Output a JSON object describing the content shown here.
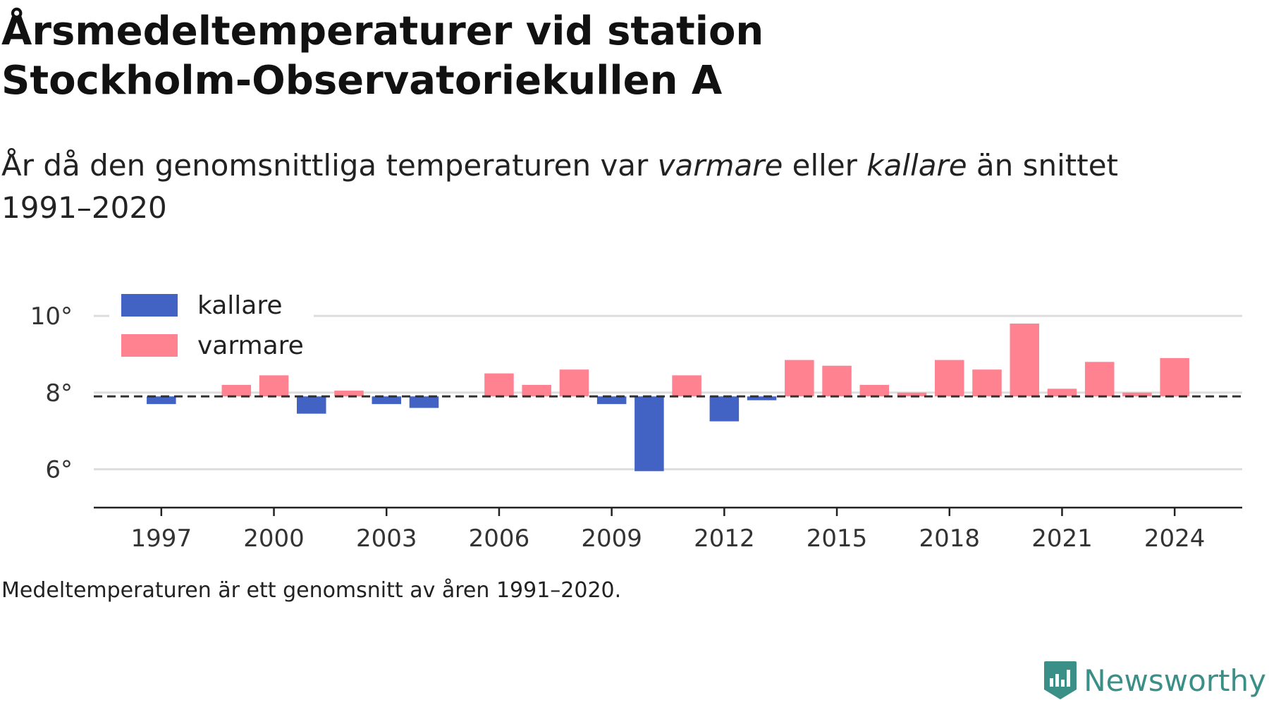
{
  "title_line1": "Årsmedeltemperaturer vid station",
  "title_line2": "Stockholm-Observatoriekullen A",
  "subtitle": {
    "part1": "År då den genomsnittliga temperaturen var ",
    "warmer_word": "varmare",
    "part2": " eller ",
    "colder_word": "kallare",
    "part3": " än snittet",
    "line2": "1991–2020"
  },
  "footnote": "Medeltemperaturen är ett genomsnitt av åren 1991–2020.",
  "brand": {
    "name": "Newsworthy",
    "icon": "newsworthy-logo-icon",
    "color": "#3a8f87"
  },
  "colors": {
    "colder": "#4263c4",
    "warmer": "#ff8291",
    "reference_line": "#333333",
    "grid": "#dddddd"
  },
  "chart_data": {
    "type": "bar",
    "baseline": 7.9,
    "ylim": [
      5.0,
      10.7
    ],
    "yticks": [
      6,
      8,
      10
    ],
    "ytick_labels": [
      "6°",
      "8°",
      "10°"
    ],
    "xticks": [
      1997,
      2000,
      2003,
      2006,
      2009,
      2012,
      2015,
      2018,
      2021,
      2024
    ],
    "xlim": [
      1995.2,
      2025.8
    ],
    "legend": {
      "placement": "top-left",
      "items": [
        "kallare",
        "varmare"
      ]
    },
    "grid": true,
    "years": [
      1997,
      1998,
      1999,
      2000,
      2001,
      2002,
      2003,
      2004,
      2005,
      2006,
      2007,
      2008,
      2009,
      2010,
      2011,
      2012,
      2013,
      2014,
      2015,
      2016,
      2017,
      2018,
      2019,
      2020,
      2021,
      2022,
      2023,
      2024
    ],
    "values": [
      7.7,
      7.9,
      8.2,
      8.45,
      7.45,
      8.05,
      7.7,
      7.6,
      7.9,
      8.5,
      8.2,
      8.6,
      7.7,
      5.95,
      8.45,
      7.25,
      7.8,
      8.85,
      8.7,
      8.2,
      8.0,
      8.85,
      8.6,
      9.8,
      8.1,
      8.8,
      8.0,
      8.9
    ]
  }
}
